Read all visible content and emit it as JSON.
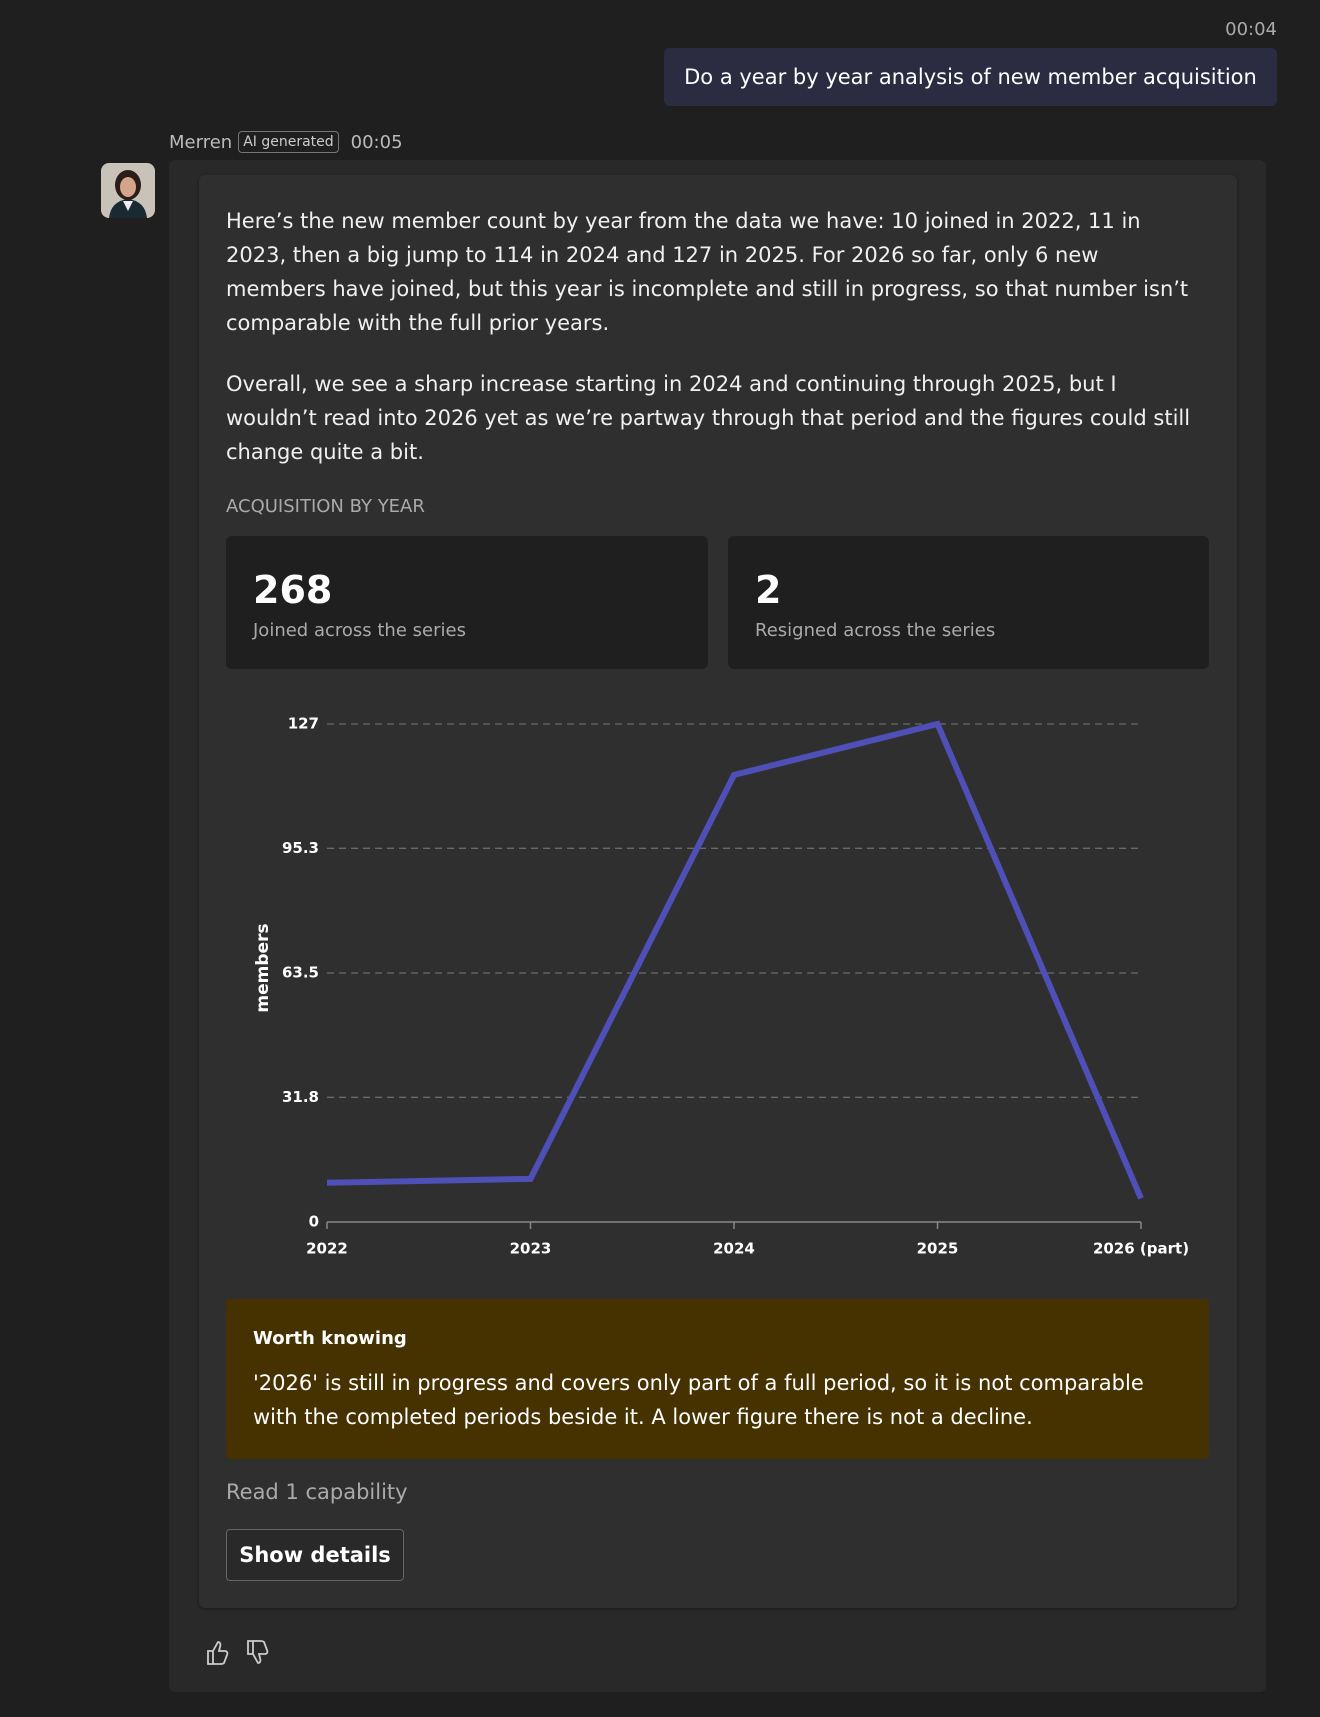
{
  "message_time": "00:04",
  "user_message": "Do a year by year analysis of new member acquisition",
  "bot": {
    "name": "Merren",
    "badge": "AI generated",
    "time": "00:05"
  },
  "paragraphs": [
    "Here’s the new member count by year from the data we have: 10 joined in 2022, 11 in 2023, then a big jump to 114 in 2024 and 127 in 2025. For 2026 so far, only 6 new members have joined, but this year is incomplete and still in progress, so that number isn’t comparable with the full prior years.",
    "Overall, we see a sharp increase starting in 2024 and continuing through 2025, but I wouldn’t read into 2026 yet as we’re partway through that period and the figures could still change quite a bit."
  ],
  "section_title": "ACQUISITION BY YEAR",
  "stats": [
    {
      "value": 268,
      "label": "Joined across the series"
    },
    {
      "value": 2,
      "label": "Resigned across the series"
    }
  ],
  "chart_data": {
    "type": "line",
    "y_label": "members",
    "categories": [
      "2022",
      "2023",
      "2024",
      "2025",
      "2026 (part)"
    ],
    "values": [
      10,
      11,
      114,
      127,
      6
    ],
    "color": "#4f4fb8",
    "ylim": [
      0,
      127
    ],
    "yticks": [
      0,
      31.8,
      63.5,
      95.3,
      127
    ],
    "grid": true
  },
  "notice": {
    "title": "Worth knowing",
    "text": "'2026' is still in progress and covers only part of a full period, so it is not comparable with the completed periods beside it. A lower figure there is not a decline."
  },
  "capability_text": "Read 1 capability",
  "button": "Show details"
}
